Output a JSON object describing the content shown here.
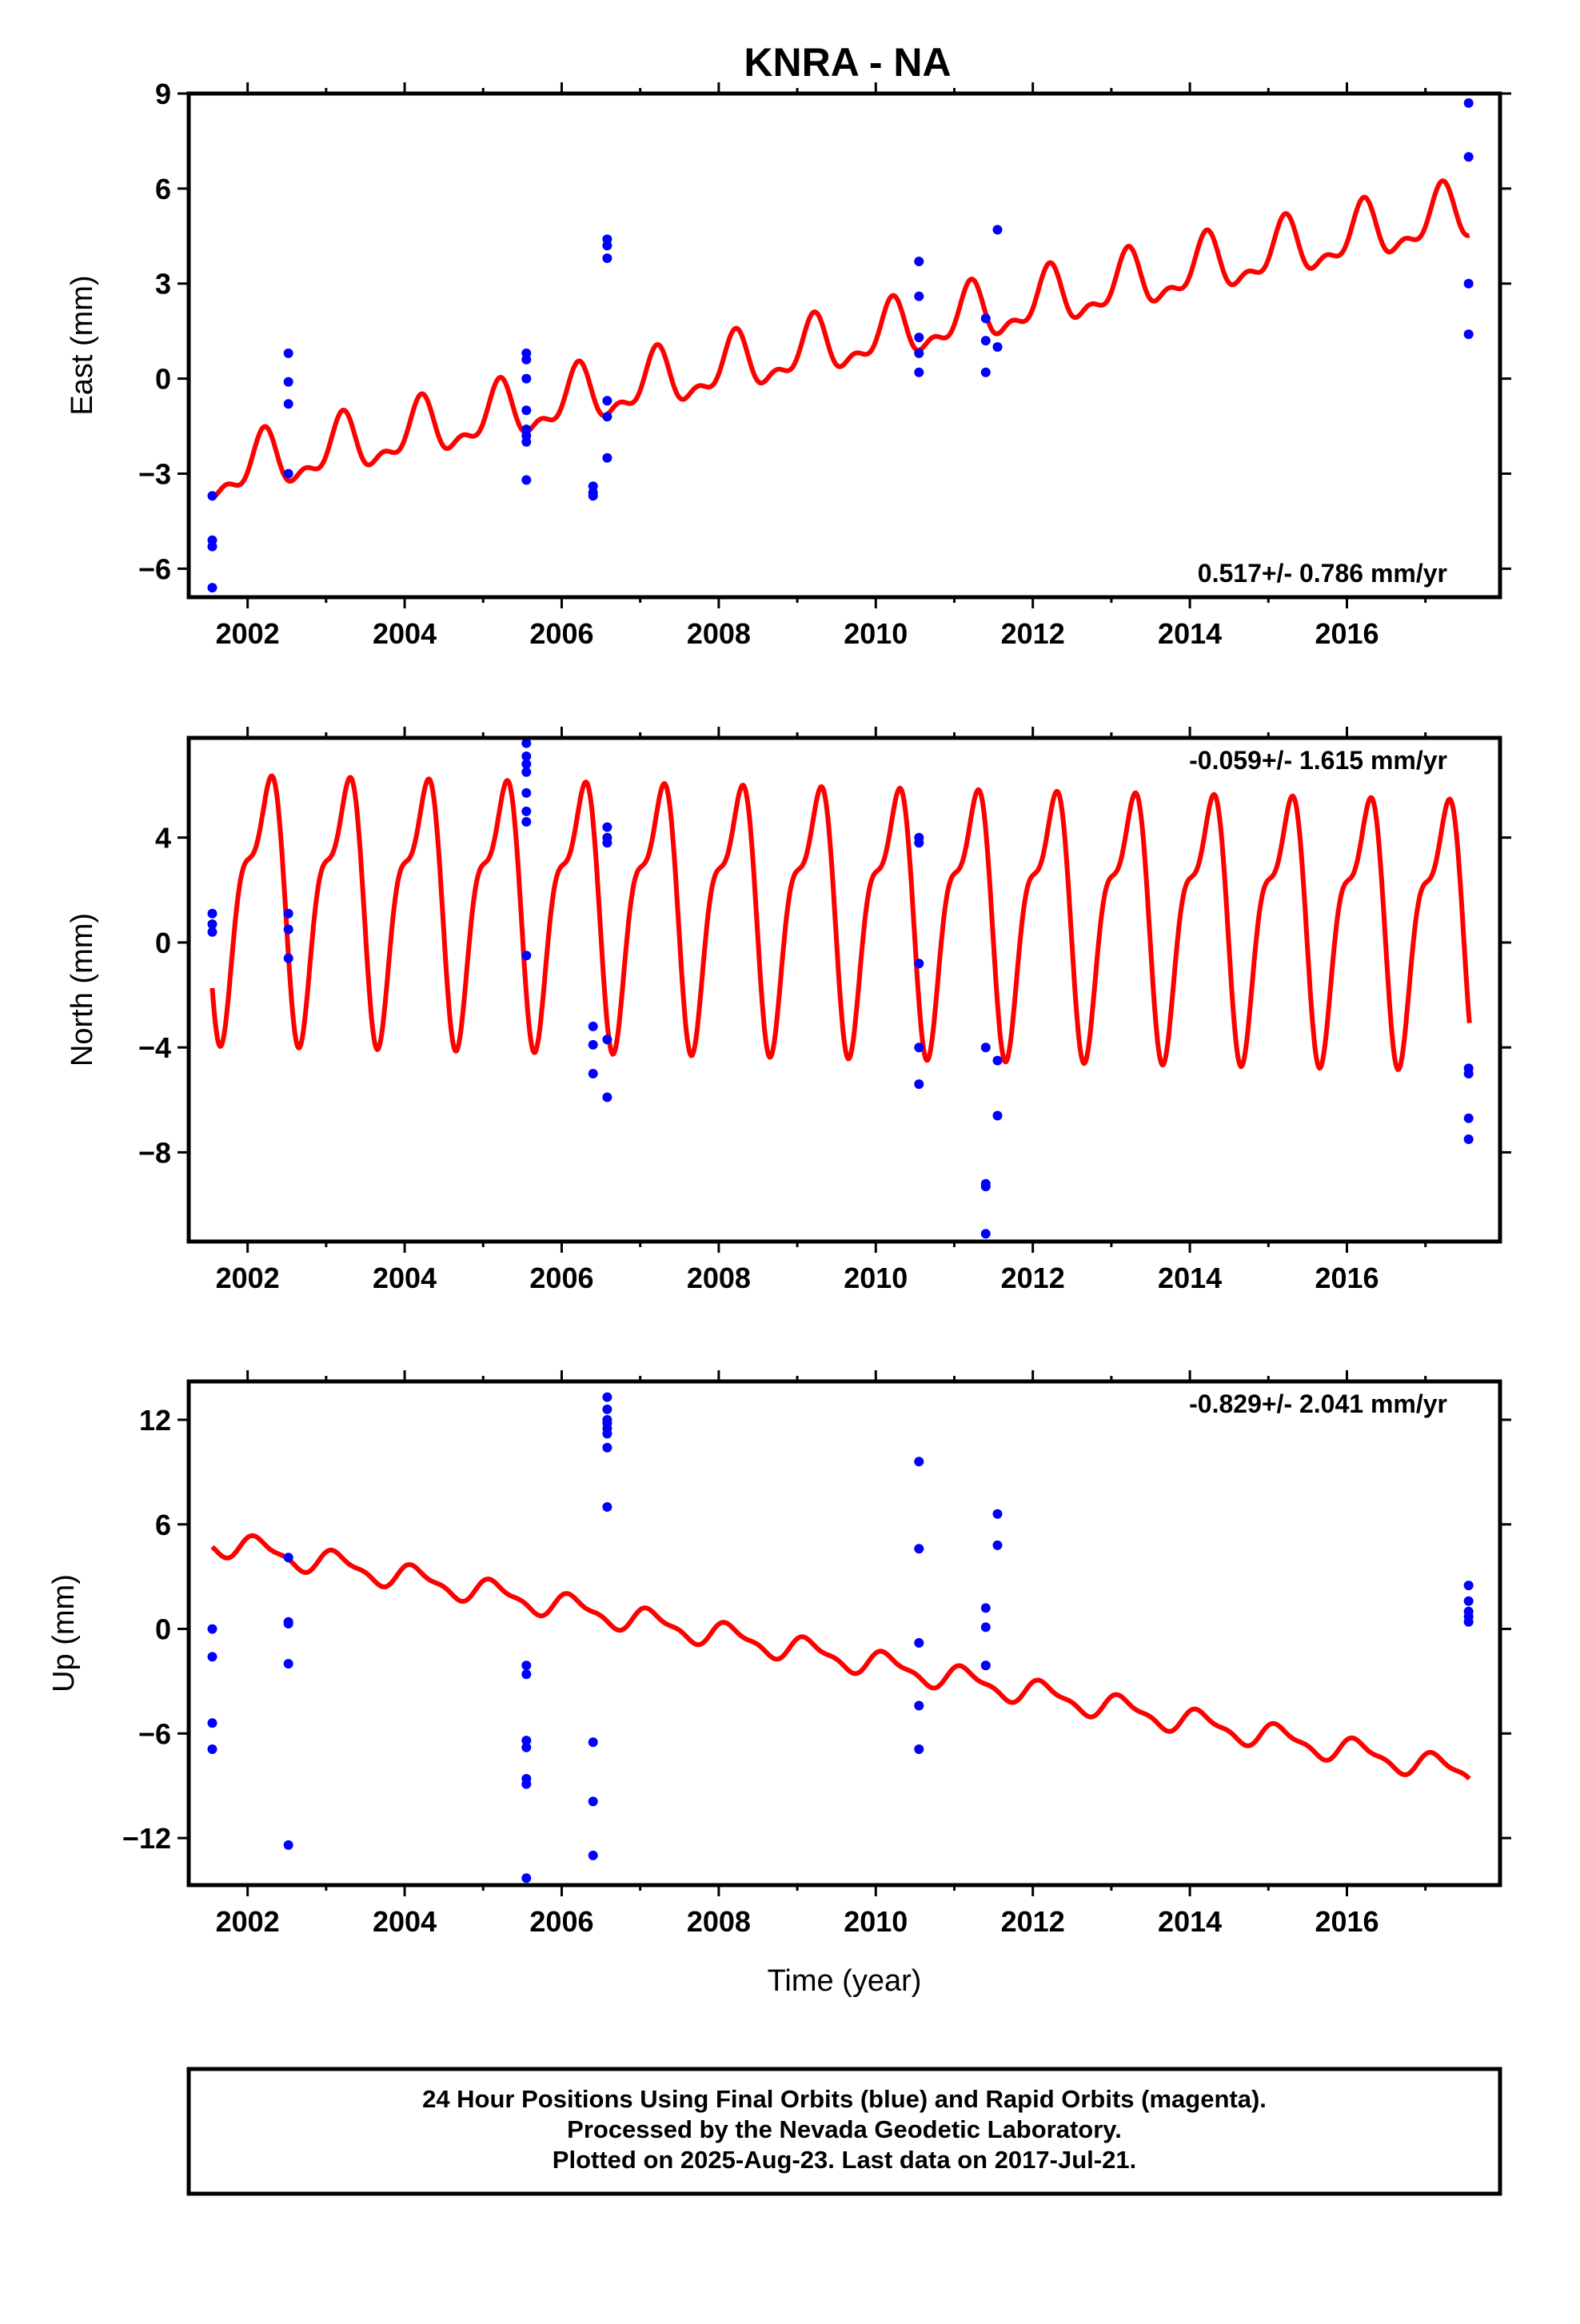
{
  "title": "KNRA - NA",
  "chart_data": [
    {
      "type": "scatter",
      "name": "east",
      "ylabel": "East (mm)",
      "xlabel": "",
      "rate_label": "0.517+/- 0.786 mm/yr",
      "xlim": [
        2001.25,
        2017.95
      ],
      "ylim": [
        -6.9,
        9.0
      ],
      "xticks": [
        2002,
        2004,
        2006,
        2008,
        2010,
        2012,
        2014,
        2016
      ],
      "yticks": [
        -6,
        -3,
        0,
        3,
        6,
        9
      ],
      "ytick_labels": [
        "−6",
        "−3",
        "0",
        "3",
        "6",
        "9"
      ],
      "points": {
        "x": [
          2001.55,
          2001.55,
          2001.55,
          2001.55,
          2002.52,
          2002.52,
          2002.52,
          2002.52,
          2005.55,
          2005.55,
          2005.55,
          2005.55,
          2005.55,
          2005.55,
          2005.55,
          2005.55,
          2006.4,
          2006.4,
          2006.4,
          2006.58,
          2006.58,
          2006.58,
          2006.58,
          2006.58,
          2006.58,
          2010.55,
          2010.55,
          2010.55,
          2010.55,
          2010.55,
          2011.4,
          2011.4,
          2011.4,
          2011.55,
          2011.55,
          2017.55,
          2017.55,
          2017.55,
          2017.55
        ],
        "y": [
          -3.7,
          -5.1,
          -5.3,
          -6.6,
          0.8,
          -0.1,
          -0.8,
          -3.0,
          0.8,
          0.6,
          0.0,
          -1.0,
          -1.6,
          -1.8,
          -3.2,
          -2.0,
          -3.4,
          -3.6,
          -3.7,
          4.4,
          4.2,
          3.8,
          -0.7,
          -2.5,
          -1.2,
          3.7,
          2.6,
          1.3,
          0.8,
          0.2,
          1.9,
          1.2,
          0.2,
          4.7,
          1.0,
          8.7,
          7.0,
          3.0,
          1.4
        ]
      },
      "model": {
        "intercept": -3.05,
        "t0": 2001.55,
        "rate": 0.517,
        "a1": 0.8,
        "p1": 0.95,
        "a2": 0.4,
        "p2": 0.6
      }
    },
    {
      "type": "scatter",
      "name": "north",
      "ylabel": "North (mm)",
      "xlabel": "",
      "rate_label": "-0.059+/- 1.615 mm/yr",
      "xlim": [
        2001.25,
        2017.95
      ],
      "ylim": [
        -11.4,
        7.8
      ],
      "xticks": [
        2002,
        2004,
        2006,
        2008,
        2010,
        2012,
        2014,
        2016
      ],
      "yticks": [
        -8,
        -4,
        0,
        4
      ],
      "ytick_labels": [
        "−8",
        "−4",
        "0",
        "4"
      ],
      "points": {
        "x": [
          2001.55,
          2001.55,
          2001.55,
          2002.52,
          2002.52,
          2002.52,
          2005.55,
          2005.55,
          2005.55,
          2005.55,
          2005.55,
          2005.55,
          2005.55,
          2005.55,
          2006.4,
          2006.4,
          2006.4,
          2006.58,
          2006.58,
          2006.58,
          2006.58,
          2006.58,
          2010.55,
          2010.55,
          2010.55,
          2010.55,
          2010.55,
          2011.4,
          2011.4,
          2011.4,
          2011.4,
          2011.55,
          2011.55,
          2017.55,
          2017.55,
          2017.55,
          2017.55
        ],
        "y": [
          1.1,
          0.7,
          0.4,
          1.1,
          0.5,
          -0.6,
          7.6,
          7.1,
          6.8,
          6.5,
          5.7,
          5.0,
          4.6,
          -0.5,
          -3.2,
          -3.9,
          -5.0,
          4.4,
          4.0,
          3.8,
          -3.7,
          -5.9,
          4.0,
          3.8,
          -0.8,
          -4.0,
          -5.4,
          -9.2,
          -9.3,
          -11.1,
          -4.0,
          -4.5,
          -6.6,
          -4.8,
          -5.0,
          -6.7,
          -7.5
        ]
      },
      "model": {
        "intercept": 1.85,
        "t0": 2001.55,
        "rate": -0.059,
        "a1": 4.3,
        "p1": 0.95,
        "a2": 1.8,
        "p2": 0.75
      }
    },
    {
      "type": "scatter",
      "name": "up",
      "ylabel": "Up (mm)",
      "xlabel": "Time (year)",
      "rate_label": "-0.829+/- 2.041 mm/yr",
      "xlim": [
        2001.25,
        2017.95
      ],
      "ylim": [
        -14.7,
        14.2
      ],
      "xticks": [
        2002,
        2004,
        2006,
        2008,
        2010,
        2012,
        2014,
        2016
      ],
      "yticks": [
        -12,
        -6,
        0,
        6,
        12
      ],
      "ytick_labels": [
        "−12",
        "−6",
        "0",
        "6",
        "12"
      ],
      "points": {
        "x": [
          2001.55,
          2001.55,
          2001.55,
          2001.55,
          2002.52,
          2002.52,
          2002.52,
          2002.52,
          2002.52,
          2005.55,
          2005.55,
          2005.55,
          2005.55,
          2005.55,
          2005.55,
          2005.55,
          2006.4,
          2006.4,
          2006.4,
          2006.58,
          2006.58,
          2006.58,
          2006.58,
          2006.58,
          2006.58,
          2006.58,
          2006.58,
          2010.55,
          2010.55,
          2010.55,
          2010.55,
          2010.55,
          2011.4,
          2011.4,
          2011.4,
          2011.4,
          2011.55,
          2011.55,
          2017.55,
          2017.55,
          2017.55,
          2017.55,
          2017.55
        ],
        "y": [
          0.0,
          -1.6,
          -5.4,
          -6.9,
          4.1,
          0.4,
          0.3,
          -2.0,
          -12.4,
          -2.1,
          -2.6,
          -6.4,
          -6.8,
          -8.6,
          -8.9,
          -14.3,
          -6.5,
          -9.9,
          -13.0,
          13.3,
          12.6,
          12.0,
          11.8,
          11.5,
          11.2,
          10.4,
          7.0,
          9.6,
          4.6,
          -0.8,
          -4.4,
          -6.9,
          1.2,
          0.1,
          -2.1,
          -2.1,
          6.6,
          4.8,
          2.5,
          1.6,
          1.0,
          0.7,
          0.4
        ]
      },
      "model": {
        "intercept": 5.0,
        "t0": 2001.55,
        "rate": -0.829,
        "a1": 0.65,
        "p1": 0.9,
        "a2": 0.25,
        "p2": 0.4
      }
    }
  ],
  "footer": {
    "line1": "24 Hour Positions Using Final Orbits (blue) and Rapid Orbits (magenta).",
    "line2": "Processed by the Nevada Geodetic Laboratory.",
    "line3": "Plotted on 2025-Aug-23. Last data on 2017-Jul-21."
  },
  "colors": {
    "points": "#0000ff",
    "model": "#ff0000",
    "frame": "#000000"
  }
}
